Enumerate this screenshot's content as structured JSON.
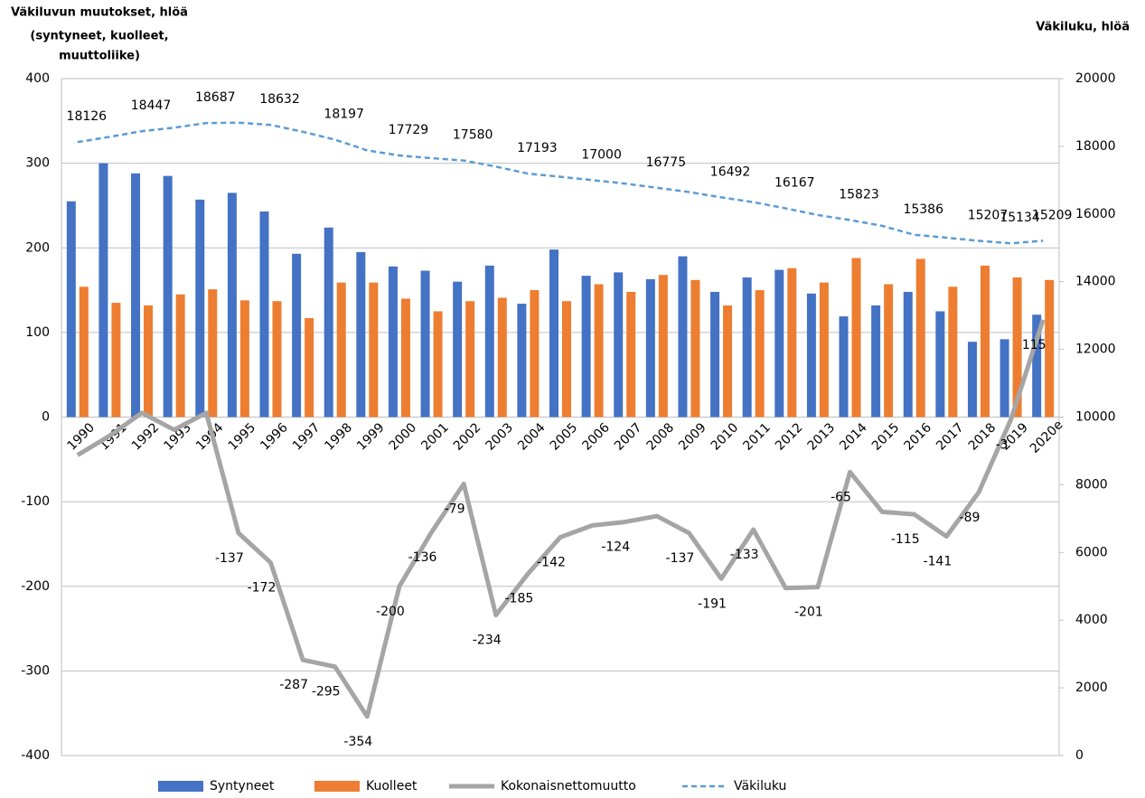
{
  "chart_data": {
    "type": "combo",
    "y_label": [
      "Väkiluvun muutokset, hlöä",
      "(syntyneet, kuolleet,",
      "muuttoliike)"
    ],
    "y2_label": "Väkiluku, hlöä",
    "categories": [
      "1990",
      "1991",
      "1992",
      "1993",
      "1994",
      "1995",
      "1996",
      "1997",
      "1998",
      "1999",
      "2000",
      "2001",
      "2002",
      "2003",
      "2004",
      "2005",
      "2006",
      "2007",
      "2008",
      "2009",
      "2010",
      "2011",
      "2012",
      "2013",
      "2014",
      "2015",
      "2016",
      "2017",
      "2018",
      "2019",
      "2020e"
    ],
    "ylim": [
      -400,
      400
    ],
    "yticks": [
      -400,
      -300,
      -200,
      -100,
      0,
      100,
      200,
      300,
      400
    ],
    "y2lim": [
      0,
      20000
    ],
    "y2ticks": [
      0,
      2000,
      4000,
      6000,
      8000,
      10000,
      12000,
      14000,
      16000,
      18000,
      20000
    ],
    "grid": true,
    "legend": "bottom",
    "series": [
      {
        "name": "Syntyneet",
        "type": "bar",
        "color": "#4472c4",
        "values": [
          255,
          300,
          288,
          285,
          257,
          265,
          243,
          193,
          224,
          195,
          178,
          173,
          160,
          179,
          134,
          198,
          167,
          171,
          163,
          190,
          148,
          165,
          174,
          146,
          119,
          132,
          148,
          125,
          89,
          92,
          121
        ]
      },
      {
        "name": "Kuolleet",
        "type": "bar",
        "color": "#ed7d31",
        "values": [
          154,
          135,
          132,
          145,
          151,
          138,
          137,
          117,
          159,
          159,
          140,
          125,
          137,
          141,
          150,
          137,
          157,
          148,
          168,
          162,
          132,
          150,
          176,
          159,
          188,
          157,
          187,
          154,
          179,
          165,
          162
        ]
      },
      {
        "name": "Kokonaisnettomuutto",
        "type": "line",
        "color": "#a5a5a5",
        "values": [
          -45,
          -22,
          5,
          -15,
          5,
          -137,
          -172,
          -287,
          -295,
          -354,
          -200,
          -136,
          -79,
          -234,
          -185,
          -142,
          -128,
          -124,
          -117,
          -137,
          -191,
          -133,
          -202,
          -201,
          -65,
          -112,
          -115,
          -141,
          -89,
          -3,
          115
        ],
        "value_labels": [
          null,
          null,
          null,
          null,
          null,
          "-137",
          "-172",
          "-287",
          "-295",
          "-354",
          "-200",
          "-136",
          "-79",
          "-234",
          "-185",
          "-142",
          null,
          "-124",
          null,
          "-137",
          "-191",
          "-133",
          null,
          "-201",
          "-65",
          null,
          "-115",
          "-141",
          "-89",
          "-3",
          "115"
        ]
      },
      {
        "name": "Väkiluku",
        "type": "line",
        "dashed": true,
        "axis": "y2",
        "color": "#5b9bd5",
        "values": [
          18126,
          18280,
          18447,
          18550,
          18687,
          18700,
          18632,
          18430,
          18197,
          17880,
          17729,
          17650,
          17580,
          17400,
          17193,
          17100,
          17000,
          16900,
          16775,
          16650,
          16492,
          16350,
          16167,
          15970,
          15823,
          15650,
          15386,
          15300,
          15207,
          15134,
          15209
        ],
        "value_labels": [
          "18126",
          null,
          "18447",
          null,
          "18687",
          null,
          "18632",
          null,
          "18197",
          null,
          "17729",
          null,
          "17580",
          null,
          "17193",
          null,
          "17000",
          null,
          "16775",
          null,
          "16492",
          null,
          "16167",
          null,
          "15823",
          null,
          "15386",
          null,
          "15207",
          "15134",
          "15209"
        ]
      }
    ]
  }
}
